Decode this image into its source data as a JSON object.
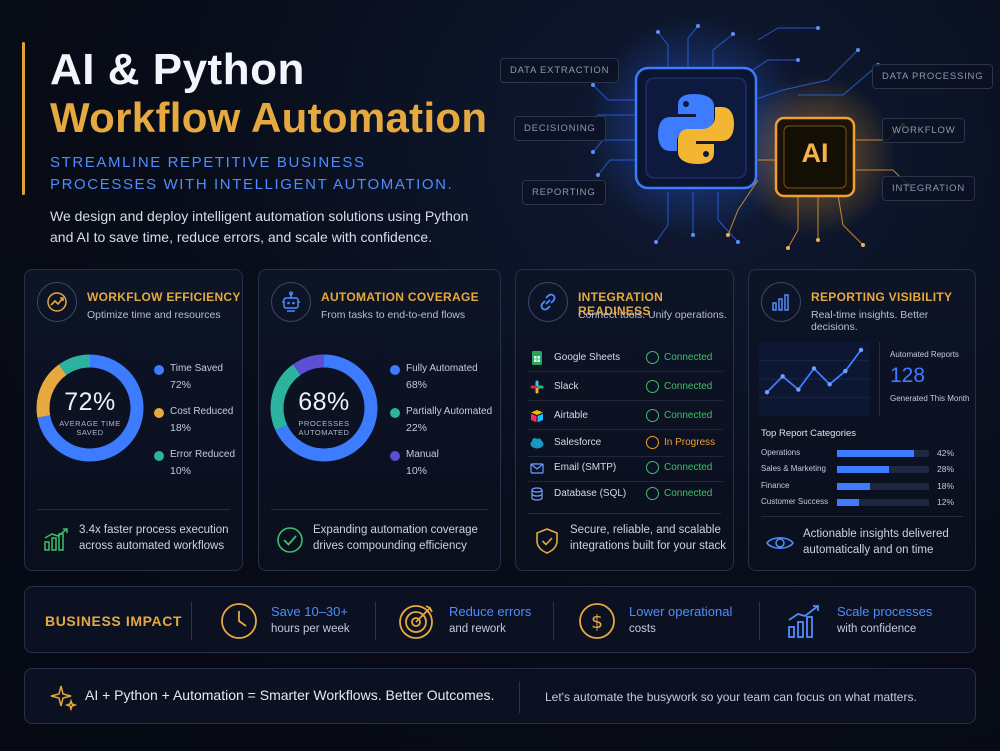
{
  "hero": {
    "title_line1": "AI & Python",
    "title_line2": "Workflow Automation",
    "subtitle": "STREAMLINE REPETITIVE BUSINESS PROCESSES WITH INTELLIGENT AUTOMATION.",
    "description": "We design and deploy intelligent automation solutions using Python and AI to save time, reduce errors, and scale with confidence."
  },
  "circuit": {
    "ai_label": "AI",
    "tags": {
      "data_extraction": "DATA EXTRACTION",
      "decisioning": "DECISIONING",
      "reporting": "REPORTING",
      "data_processing": "DATA PROCESSING",
      "workflow": "WORKFLOW",
      "integration": "INTEGRATION"
    }
  },
  "colors": {
    "accent_gold": "#e5a93f",
    "accent_blue": "#3d7bff",
    "accent_teal": "#2bb3a0",
    "accent_purple": "#5b4fd6",
    "status_green": "#3fbf6a",
    "status_orange": "#f0a030"
  },
  "cards": {
    "efficiency": {
      "title": "WORKFLOW EFFICIENCY",
      "subtitle": "Optimize time and resources",
      "center_value": "72%",
      "center_label": "AVERAGE TIME SAVED",
      "legend": [
        {
          "name": "Time Saved",
          "value": "72%",
          "color": "#3d7bff"
        },
        {
          "name": "Cost Reduced",
          "value": "18%",
          "color": "#e5a93f"
        },
        {
          "name": "Error Reduced",
          "value": "10%",
          "color": "#2bb3a0"
        }
      ],
      "footer": "3.4x faster process execution across automated workflows"
    },
    "coverage": {
      "title": "AUTOMATION COVERAGE",
      "subtitle": "From tasks to end-to-end flows",
      "center_value": "68%",
      "center_label": "PROCESSES AUTOMATED",
      "legend": [
        {
          "name": "Fully Automated",
          "value": "68%",
          "color": "#3d7bff"
        },
        {
          "name": "Partially Automated",
          "value": "22%",
          "color": "#2bb3a0"
        },
        {
          "name": "Manual",
          "value": "10%",
          "color": "#5b4fd6"
        }
      ],
      "footer": "Expanding automation coverage drives compounding efficiency"
    },
    "integration": {
      "title": "INTEGRATION READINESS",
      "subtitle": "Connect tools. Unify operations.",
      "rows": [
        {
          "name": "Google Sheets",
          "status": "Connected",
          "icon": "google-sheets-icon"
        },
        {
          "name": "Slack",
          "status": "Connected",
          "icon": "slack-icon"
        },
        {
          "name": "Airtable",
          "status": "Connected",
          "icon": "airtable-icon"
        },
        {
          "name": "Salesforce",
          "status": "In Progress",
          "icon": "salesforce-icon"
        },
        {
          "name": "Email (SMTP)",
          "status": "Connected",
          "icon": "email-icon"
        },
        {
          "name": "Database (SQL)",
          "status": "Connected",
          "icon": "database-icon"
        }
      ],
      "footer": "Secure, reliable, and scalable integrations built for your stack"
    },
    "reporting": {
      "title": "REPORTING VISIBILITY",
      "subtitle": "Real-time insights. Better decisions.",
      "reports_label": "Automated Reports",
      "reports_value": "128",
      "reports_sub": "Generated This Month",
      "trend": [
        12,
        24,
        14,
        30,
        18,
        28,
        44
      ],
      "categories_title": "Top Report Categories",
      "categories": [
        {
          "name": "Operations",
          "value": 42,
          "label": "42%"
        },
        {
          "name": "Sales & Marketing",
          "value": 28,
          "label": "28%"
        },
        {
          "name": "Finance",
          "value": 18,
          "label": "18%"
        },
        {
          "name": "Customer Success",
          "value": 12,
          "label": "12%"
        }
      ],
      "footer": "Actionable insights delivered automatically and on time"
    }
  },
  "impact": {
    "label": "BUSINESS IMPACT",
    "items": [
      {
        "title": "Save 10–30+",
        "sub": "hours per week",
        "icon": "clock-icon"
      },
      {
        "title": "Reduce errors",
        "sub": "and rework",
        "icon": "target-icon"
      },
      {
        "title": "Lower operational",
        "sub": "costs",
        "icon": "dollar-icon"
      },
      {
        "title": "Scale processes",
        "sub": "with confidence",
        "icon": "growth-chart-icon"
      }
    ]
  },
  "footer": {
    "left": "AI + Python + Automation = Smarter Workflows. Better Outcomes.",
    "right": "Let's automate the busywork so your team can focus on what matters."
  }
}
